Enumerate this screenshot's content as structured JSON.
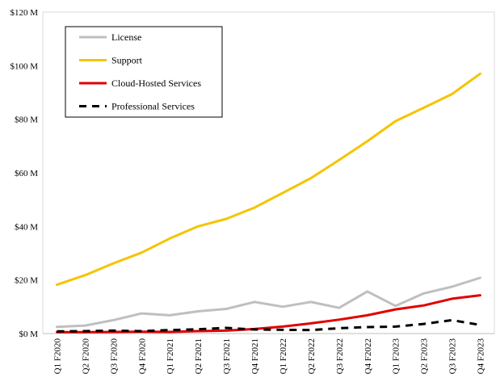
{
  "chart_data": {
    "type": "line",
    "title": "",
    "xlabel": "",
    "ylabel": "",
    "categories": [
      "Q1 F2020",
      "Q2 F2020",
      "Q3 F2020",
      "Q4 F2020",
      "Q1 F2021",
      "Q2 F2021",
      "Q3 F2021",
      "Q4 F2021",
      "Q1 F2022",
      "Q2 F2022",
      "Q3 F2022",
      "Q4 F2022",
      "Q1 F2023",
      "Q2 F2023",
      "Q3 F2023",
      "Q4 F2023"
    ],
    "ylim": [
      0,
      120
    ],
    "y_ticks": [
      0,
      20,
      40,
      60,
      80,
      100,
      120
    ],
    "y_tick_labels": [
      "$0 M",
      "$20 M",
      "$40 M",
      "$60 M",
      "$80 M",
      "$100 M",
      "$120 M"
    ],
    "grid": false,
    "legend_placement": "top-left",
    "series": [
      {
        "name": "License",
        "color": "#bfbfbf",
        "dash": "solid",
        "values": [
          2.5,
          3,
          5,
          7.5,
          6.8,
          8.3,
          9.2,
          11.8,
          10,
          11.8,
          9.6,
          15.7,
          10.3,
          15,
          17.5,
          20.8
        ]
      },
      {
        "name": "Support",
        "color": "#f5c400",
        "dash": "solid",
        "values": [
          18.2,
          21.8,
          26.2,
          30.2,
          35.5,
          40,
          42.8,
          47,
          52.5,
          58,
          64.8,
          71.8,
          79.3,
          84.3,
          89.4,
          97
        ]
      },
      {
        "name": "Cloud-Hosted Services",
        "color": "#e00000",
        "dash": "solid",
        "values": [
          0.5,
          0.5,
          0.6,
          0.7,
          0.6,
          0.9,
          1.1,
          1.7,
          2.6,
          3.8,
          5.2,
          6.8,
          9,
          10.5,
          13,
          14.3
        ]
      },
      {
        "name": "Professional Services",
        "color": "#000000",
        "dash": "dashed",
        "values": [
          0.8,
          0.9,
          1.1,
          0.9,
          1.3,
          1.6,
          2.1,
          1.5,
          1.4,
          1.3,
          2,
          2.4,
          2.6,
          3.6,
          5,
          3.2
        ]
      }
    ]
  }
}
